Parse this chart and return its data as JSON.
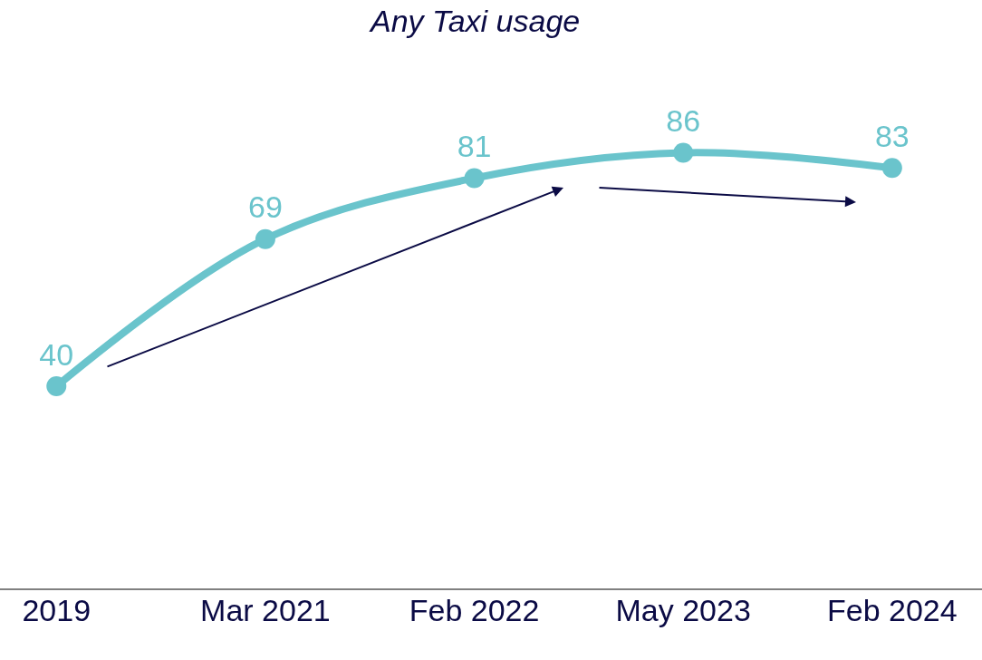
{
  "chart_data": {
    "type": "line",
    "title": "Any Taxi usage",
    "categories": [
      "2019",
      "Mar 2021",
      "Feb 2022",
      "May 2023",
      "Feb 2024"
    ],
    "series": [
      {
        "color": "#6ac4cc",
        "values": [
          40,
          69,
          81,
          86,
          83
        ]
      }
    ],
    "data_labels": true,
    "marker": "circle",
    "line_style": "solid",
    "legend": false,
    "tick_labels": "x"
  }
}
